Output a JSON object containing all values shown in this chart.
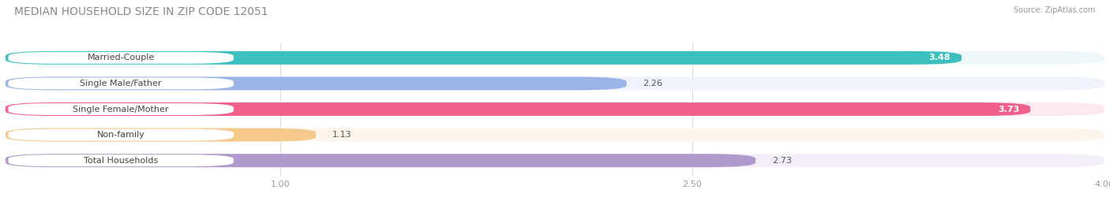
{
  "title": "MEDIAN HOUSEHOLD SIZE IN ZIP CODE 12051",
  "source": "Source: ZipAtlas.com",
  "categories": [
    "Married-Couple",
    "Single Male/Father",
    "Single Female/Mother",
    "Non-family",
    "Total Households"
  ],
  "values": [
    3.48,
    2.26,
    3.73,
    1.13,
    2.73
  ],
  "bar_colors": [
    "#3bbfbf",
    "#9ab4e8",
    "#f0608a",
    "#f5c98a",
    "#b09acd"
  ],
  "bar_bg_colors": [
    "#eff8f8",
    "#f0f3fc",
    "#fce8ef",
    "#fdf5ec",
    "#f3eef8"
  ],
  "label_pill_colors": [
    "#3bbfbf",
    "#9ab4e8",
    "#f0608a",
    "#f5c98a",
    "#b09acd"
  ],
  "value_inside": [
    true,
    false,
    true,
    false,
    false
  ],
  "xmin": 0.0,
  "xmax": 4.0,
  "xticks": [
    1.0,
    2.5,
    4.0
  ],
  "title_fontsize": 10,
  "label_fontsize": 8,
  "value_fontsize": 8,
  "background_color": "#ffffff"
}
